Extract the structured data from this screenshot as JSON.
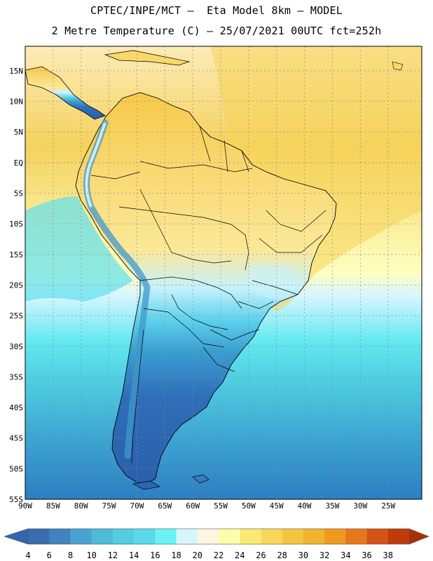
{
  "header": {
    "line1": "CPTEC/INPE/MCT –  Eta Model 8km – MODEL",
    "line2": "2 Metre Temperature (C) – 25/07/2021 00UTC fct=252h"
  },
  "map": {
    "lat_labels": [
      "15N",
      "10N",
      "5N",
      "EQ",
      "5S",
      "10S",
      "15S",
      "20S",
      "25S",
      "30S",
      "35S",
      "40S",
      "45S",
      "50S",
      "55S"
    ],
    "lon_labels": [
      "90W",
      "85W",
      "80W",
      "75W",
      "70W",
      "65W",
      "60W",
      "55W",
      "50W",
      "45W",
      "40W",
      "35W",
      "30W",
      "25W"
    ],
    "lat_range": [
      -55,
      19
    ],
    "lon_range": [
      -90,
      -19
    ],
    "ocean_gradient_colors": [
      "#fdebb8",
      "#f4d25e",
      "#feffc0",
      "#d7f6ff",
      "#64e8f0",
      "#4fcde0",
      "#3ea7d3",
      "#2d7ec2"
    ],
    "land_gradient_colors": [
      "#f7c94a",
      "#fbe898",
      "#c6f2fc",
      "#5fd2ec",
      "#3a9fd2",
      "#2e6eb8",
      "#2b5fab"
    ]
  },
  "colorbar": {
    "ticks": [
      "4",
      "6",
      "8",
      "10",
      "12",
      "14",
      "16",
      "18",
      "20",
      "22",
      "24",
      "26",
      "28",
      "30",
      "32",
      "34",
      "36",
      "38"
    ],
    "colors": [
      "#3a6cb0",
      "#3f84c0",
      "#49a3d2",
      "#4dbad9",
      "#52cde2",
      "#5ad9e9",
      "#6af3f7",
      "#d6f6fd",
      "#fef6e2",
      "#fefeaa",
      "#fbe974",
      "#f8d75a",
      "#f4c640",
      "#f2b32d",
      "#ee9a1f",
      "#e7771b",
      "#d55314",
      "#c03a0b"
    ],
    "low_arrow_color": "#3166ab",
    "high_arrow_color": "#a7300a"
  }
}
